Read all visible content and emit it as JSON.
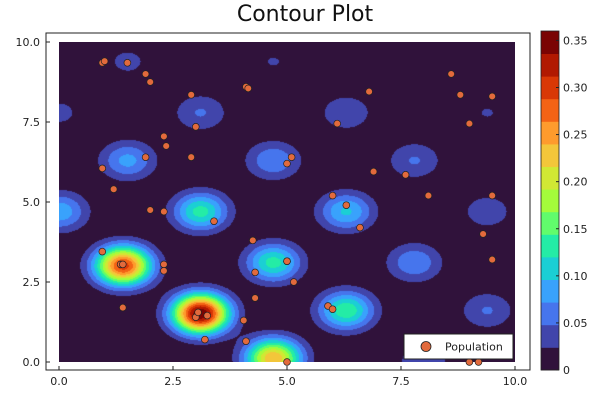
{
  "chart_data": {
    "type": "contour",
    "title": "Contour Plot",
    "xlabel": "",
    "ylabel": "",
    "xlim": [
      0,
      10
    ],
    "ylim": [
      0,
      10
    ],
    "x_ticks": [
      0.0,
      2.5,
      5.0,
      7.5,
      10.0
    ],
    "x_tick_labels": [
      "0.0",
      "2.5",
      "5.0",
      "7.5",
      "10.0"
    ],
    "y_ticks": [
      0.0,
      2.5,
      5.0,
      7.5,
      10.0
    ],
    "y_tick_labels": [
      "0.0",
      "2.5",
      "5.0",
      "7.5",
      "10.0"
    ],
    "grid": false,
    "colorbar": {
      "min": 0,
      "max": 0.36,
      "ticks": [
        0,
        0.05,
        0.1,
        0.15,
        0.2,
        0.25,
        0.3,
        0.35
      ],
      "tick_labels": [
        "0",
        "0.05",
        "0.10",
        "0.15",
        "0.20",
        "0.25",
        "0.30",
        "0.35"
      ],
      "colors": [
        "#30123b",
        "#4145ab",
        "#4675ed",
        "#39a2fc",
        "#1bcfd4",
        "#24eca6",
        "#61fc6c",
        "#a4fc3b",
        "#d1e834",
        "#f3c63a",
        "#fe9b2d",
        "#f36315",
        "#d93806",
        "#b11901",
        "#7a0403"
      ]
    },
    "peaks": [
      {
        "x": 1.4,
        "y": 3.0,
        "height": 0.3
      },
      {
        "x": 3.1,
        "y": 1.5,
        "height": 0.36
      },
      {
        "x": 4.7,
        "y": 0.1,
        "height": 0.24
      },
      {
        "x": 3.1,
        "y": 4.7,
        "height": 0.13
      },
      {
        "x": 4.7,
        "y": 3.1,
        "height": 0.13
      },
      {
        "x": 6.3,
        "y": 1.6,
        "height": 0.14
      },
      {
        "x": 6.3,
        "y": 4.7,
        "height": 0.1
      },
      {
        "x": 7.8,
        "y": 3.1,
        "height": 0.07
      },
      {
        "x": 1.5,
        "y": 6.3,
        "height": 0.08
      },
      {
        "x": 4.7,
        "y": 6.3,
        "height": 0.07
      },
      {
        "x": 3.1,
        "y": 7.8,
        "height": 0.05
      },
      {
        "x": 6.3,
        "y": 7.8,
        "height": 0.045
      },
      {
        "x": 7.8,
        "y": 6.3,
        "height": 0.05
      },
      {
        "x": 1.5,
        "y": 9.4,
        "height": 0.03
      },
      {
        "x": 4.7,
        "y": 9.4,
        "height": 0.025
      },
      {
        "x": 9.4,
        "y": 4.7,
        "height": 0.04
      },
      {
        "x": 9.4,
        "y": 7.8,
        "height": 0.025
      },
      {
        "x": 9.4,
        "y": 1.6,
        "height": 0.05
      },
      {
        "x": 8.0,
        "y": 0.0,
        "height": 0.045
      },
      {
        "x": 0.0,
        "y": 7.8,
        "height": 0.03
      },
      {
        "x": 0.0,
        "y": 4.7,
        "height": 0.09
      }
    ],
    "series": [
      {
        "name": "Population",
        "type": "scatter",
        "color": "#e26a3c",
        "x": [
          0.95,
          1.0,
          1.5,
          1.9,
          2.0,
          2.9,
          3.0,
          4.1,
          4.15,
          6.1,
          6.8,
          8.6,
          8.8,
          9.5,
          9.0,
          0.95,
          1.2,
          1.9,
          2.3,
          2.35,
          2.9,
          5.0,
          5.1,
          6.0,
          6.3,
          6.9,
          7.6,
          8.1,
          9.5,
          2.0,
          2.3,
          3.4,
          4.25,
          6.6,
          9.3,
          0.95,
          1.35,
          1.4,
          2.3,
          2.3,
          4.3,
          5.0,
          5.0,
          5.15,
          9.5,
          1.4,
          3.0,
          3.05,
          3.2,
          4.3,
          5.9,
          6.0,
          4.05,
          3.25,
          4.1,
          5.0,
          9.0,
          9.2
        ],
        "y": [
          9.35,
          9.4,
          9.35,
          9.0,
          8.75,
          8.35,
          7.35,
          8.6,
          8.55,
          7.45,
          8.45,
          9.0,
          8.35,
          8.3,
          7.45,
          6.05,
          5.4,
          6.4,
          7.05,
          6.75,
          6.4,
          6.2,
          6.4,
          5.2,
          4.9,
          5.95,
          5.85,
          5.2,
          5.2,
          4.75,
          4.7,
          4.4,
          3.8,
          4.2,
          4.0,
          3.45,
          3.05,
          3.05,
          3.05,
          2.85,
          2.8,
          3.15,
          3.15,
          2.5,
          3.2,
          1.7,
          1.4,
          1.55,
          0.7,
          2.0,
          1.75,
          1.65,
          1.3,
          1.45,
          0.65,
          0.0,
          0.0,
          0.0
        ]
      }
    ],
    "legend": {
      "position": "bottom-right",
      "entries": [
        "Population"
      ]
    }
  }
}
